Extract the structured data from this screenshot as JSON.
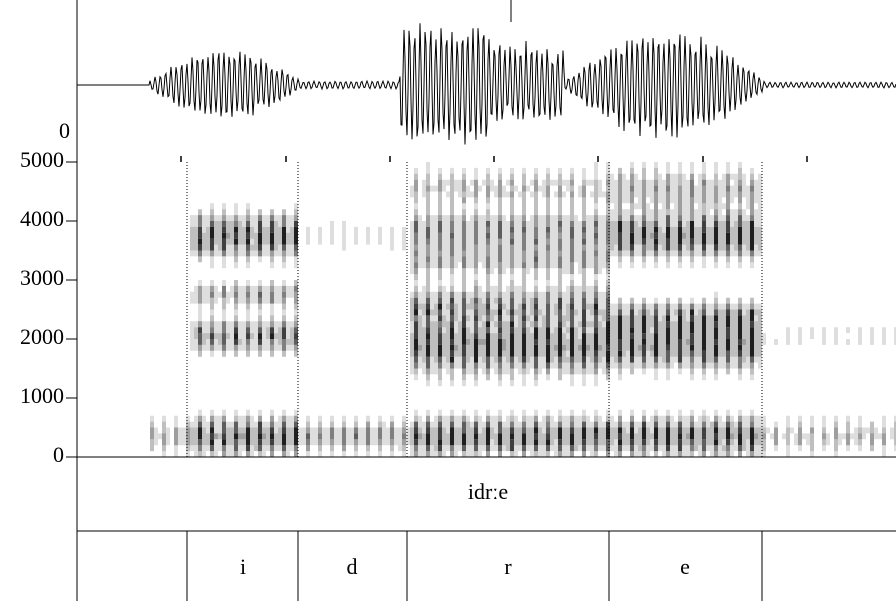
{
  "chart_data": {
    "type": "spectrogram",
    "waveform_zero": 0,
    "ylim": [
      0,
      5000
    ],
    "yticks": [
      0,
      1000,
      2000,
      3000,
      4000,
      5000
    ],
    "tiers": [
      {
        "intervals": [
          "idrːe"
        ]
      },
      {
        "intervals": [
          "i",
          "d",
          "r",
          "e"
        ]
      }
    ]
  }
}
